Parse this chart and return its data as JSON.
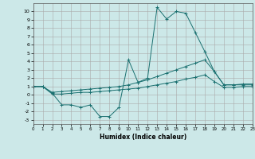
{
  "xlabel": "Humidex (Indice chaleur)",
  "xlim": [
    0,
    23
  ],
  "ylim": [
    -3.5,
    11.0
  ],
  "xticks": [
    0,
    1,
    2,
    3,
    4,
    5,
    6,
    7,
    8,
    9,
    10,
    11,
    12,
    13,
    14,
    15,
    16,
    17,
    18,
    19,
    20,
    21,
    22,
    23
  ],
  "yticks": [
    -3,
    -2,
    -1,
    0,
    1,
    2,
    3,
    4,
    5,
    6,
    7,
    8,
    9,
    10
  ],
  "bg_color": "#cce8e8",
  "grid_color": "#aaaaaa",
  "line_color": "#1a7070",
  "line1_x": [
    0,
    1,
    2,
    3,
    4,
    5,
    6,
    7,
    8,
    9,
    10,
    11,
    12,
    13,
    14,
    15,
    16,
    17,
    18,
    19,
    20,
    21,
    22,
    23
  ],
  "line1_y": [
    1.0,
    1.0,
    0.2,
    -1.2,
    -1.2,
    -1.5,
    -1.2,
    -2.6,
    -2.6,
    -1.5,
    4.2,
    1.5,
    2.0,
    10.5,
    9.1,
    10.0,
    9.8,
    7.5,
    5.2,
    2.8,
    1.2,
    1.2,
    1.2,
    1.2
  ],
  "line2_x": [
    0,
    1,
    2,
    3,
    4,
    5,
    6,
    7,
    8,
    9,
    10,
    11,
    12,
    13,
    14,
    15,
    16,
    17,
    18,
    19,
    20,
    21,
    22,
    23
  ],
  "line2_y": [
    1.0,
    1.0,
    0.3,
    0.4,
    0.5,
    0.6,
    0.7,
    0.8,
    0.9,
    1.0,
    1.2,
    1.5,
    1.8,
    2.2,
    2.6,
    3.0,
    3.4,
    3.8,
    4.2,
    2.8,
    1.2,
    1.2,
    1.3,
    1.3
  ],
  "line3_x": [
    0,
    1,
    2,
    3,
    4,
    5,
    6,
    7,
    8,
    9,
    10,
    11,
    12,
    13,
    14,
    15,
    16,
    17,
    18,
    19,
    20,
    21,
    22,
    23
  ],
  "line3_y": [
    1.0,
    1.0,
    0.1,
    0.1,
    0.2,
    0.3,
    0.3,
    0.4,
    0.5,
    0.6,
    0.7,
    0.8,
    1.0,
    1.2,
    1.4,
    1.6,
    1.9,
    2.1,
    2.4,
    1.6,
    0.9,
    0.9,
    1.0,
    1.0
  ]
}
